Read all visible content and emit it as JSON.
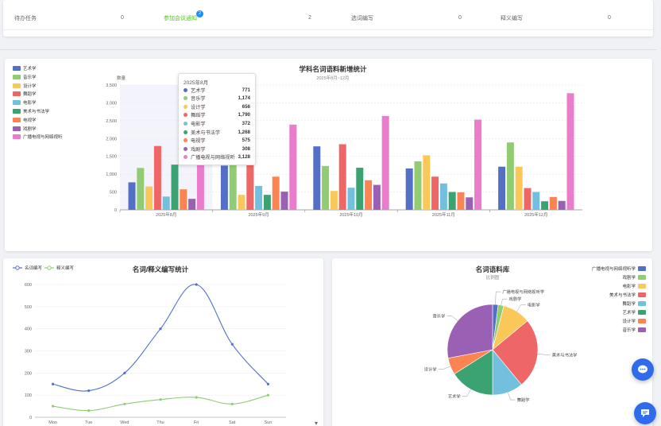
{
  "tasks_row": {
    "cells": [
      {
        "label": "待办任务",
        "value": "0"
      },
      {
        "label": "参加会议通知",
        "value": "2",
        "badge": "2"
      },
      {
        "label": "选词编写",
        "value": "0"
      },
      {
        "label": "释义编写",
        "value": "0"
      }
    ]
  },
  "chart_data": [
    {
      "type": "bar",
      "title": "学科名词语料新增统计",
      "subtitle": "2025年8月~12月",
      "ylabel": "数量",
      "ylim": [
        0,
        3500
      ],
      "yticks": [
        "0",
        "500",
        "1,000",
        "1,500",
        "2,000",
        "2,500",
        "3,000",
        "3,500"
      ],
      "categories": [
        "2025年8月",
        "2025年9月",
        "2025年10月",
        "2025年11月",
        "2025年12月"
      ],
      "series": [
        {
          "name": "艺术学",
          "color": "#5470c6",
          "values": [
            771,
            1240,
            1780,
            1160,
            1210
          ]
        },
        {
          "name": "音乐学",
          "color": "#91cc75",
          "values": [
            1174,
            1290,
            1230,
            1360,
            1890
          ]
        },
        {
          "name": "设计学",
          "color": "#fac858",
          "values": [
            656,
            420,
            530,
            1530,
            1210
          ]
        },
        {
          "name": "舞蹈学",
          "color": "#ee6666",
          "values": [
            1790,
            1330,
            1840,
            930,
            610
          ]
        },
        {
          "name": "电影学",
          "color": "#73c0de",
          "values": [
            372,
            670,
            620,
            740,
            500
          ]
        },
        {
          "name": "美术与书法学",
          "color": "#3ba272",
          "values": [
            1268,
            420,
            1180,
            500,
            240
          ]
        },
        {
          "name": "电视学",
          "color": "#fc8452",
          "values": [
            575,
            930,
            830,
            490,
            360
          ]
        },
        {
          "name": "戏剧学",
          "color": "#9a60b4",
          "values": [
            308,
            510,
            700,
            350,
            250
          ]
        },
        {
          "name": "广播电视与网络视听",
          "color": "#ea7ccc",
          "values": [
            3128,
            2390,
            2630,
            2530,
            3270
          ]
        }
      ],
      "tooltip": {
        "title": "2025年8月",
        "rows": [
          {
            "name": "艺术学",
            "value": "771"
          },
          {
            "name": "音乐学",
            "value": "1,174"
          },
          {
            "name": "设计学",
            "value": "656"
          },
          {
            "name": "舞蹈学",
            "value": "1,790"
          },
          {
            "name": "电影学",
            "value": "372"
          },
          {
            "name": "美术与书法学",
            "value": "1,268"
          },
          {
            "name": "电视学",
            "value": "575"
          },
          {
            "name": "戏剧学",
            "value": "308"
          },
          {
            "name": "广播电视与网络视听",
            "value": "3,128"
          }
        ]
      }
    },
    {
      "type": "line",
      "title": "名词/释义编写统计",
      "categories": [
        "Mon",
        "Tue",
        "Wed",
        "Thu",
        "Fri",
        "Sat",
        "Sun"
      ],
      "ylim": [
        0,
        600
      ],
      "yticks": [
        "0",
        "100",
        "200",
        "300",
        "400",
        "500",
        "600"
      ],
      "series": [
        {
          "name": "名词编写",
          "color": "#5470c6",
          "values": [
            150,
            120,
            200,
            400,
            600,
            330,
            150
          ]
        },
        {
          "name": "释义编写",
          "color": "#91cc75",
          "values": [
            50,
            30,
            60,
            80,
            90,
            60,
            100
          ]
        }
      ]
    },
    {
      "type": "pie",
      "title": "名词语料库",
      "subtitle": "比例图",
      "slices": [
        {
          "name": "广播电视与网络视听学",
          "value": 2,
          "color": "#5470c6"
        },
        {
          "name": "戏剧学",
          "value": 2,
          "color": "#91cc75"
        },
        {
          "name": "电影学",
          "value": 10,
          "color": "#fac858"
        },
        {
          "name": "美术与书法学",
          "value": 25,
          "color": "#ee6666"
        },
        {
          "name": "舞蹈学",
          "value": 11,
          "color": "#73c0de"
        },
        {
          "name": "艺术学",
          "value": 16,
          "color": "#3ba272"
        },
        {
          "name": "设计学",
          "value": 6,
          "color": "#fc8452"
        },
        {
          "name": "音乐学",
          "value": 28,
          "color": "#9a60b4"
        }
      ],
      "legend": [
        "广播电视与网络视听学",
        "戏剧学",
        "电影学",
        "美术与书法学",
        "舞蹈学",
        "艺术学",
        "设计学",
        "音乐学"
      ]
    }
  ],
  "fab": {
    "chat_icon": "chat-bubble-icon",
    "message_icon": "message-icon"
  }
}
